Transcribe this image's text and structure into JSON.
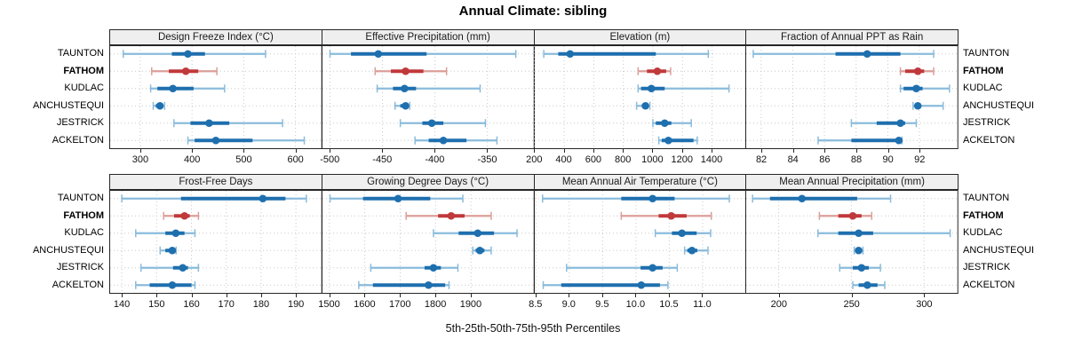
{
  "title": "Annual Climate: sibling",
  "caption": "5th-25th-50th-75th-95th Percentiles",
  "colors": {
    "border": "#262626",
    "grid": "#c9c9c9",
    "header_bg": "#efefef",
    "blue": "#1e6fae",
    "blue_light": "#8abbdb",
    "red": "#c0393b",
    "red_light": "#dc9e98",
    "text": "#111111"
  },
  "chart_data": {
    "type": "dot-interval-trellis",
    "percentiles": [
      5,
      25,
      50,
      75,
      95
    ],
    "categories": [
      "TAUNTON",
      "FATHOM",
      "KUDLAC",
      "ANCHUSTEQUI",
      "JESTRICK",
      "ACKELTON"
    ],
    "highlight_category": "FATHOM",
    "legend_note": "highlighted site shown in red",
    "panels": [
      {
        "title": "Design Freeze Index (°C)",
        "grid_position": [
          0,
          0
        ],
        "xlim": [
          240,
          650
        ],
        "tick_values": [
          300,
          400,
          500,
          600
        ],
        "tick_labels": [
          "300",
          "400",
          "500",
          "600"
        ],
        "series": {
          "TAUNTON": [
            267,
            361,
            392,
            425,
            542
          ],
          "FATHOM": [
            322,
            355,
            388,
            412,
            448
          ],
          "KUDLAC": [
            320,
            333,
            363,
            403,
            463
          ],
          "ANCHUSTEQUI": [
            325,
            330,
            338,
            342,
            347
          ],
          "JESTRICK": [
            365,
            397,
            433,
            472,
            575
          ],
          "ACKELTON": [
            392,
            405,
            446,
            517,
            617
          ]
        }
      },
      {
        "title": "Effective Precipitation (mm)",
        "grid_position": [
          0,
          1
        ],
        "xlim": [
          -508,
          -306
        ],
        "tick_values": [
          -500,
          -450,
          -400,
          -350
        ],
        "tick_labels": [
          "-500",
          "-450",
          "-400",
          "-350"
        ],
        "series": {
          "TAUNTON": [
            -500,
            -480,
            -454,
            -408,
            -323
          ],
          "FATHOM": [
            -457,
            -442,
            -428,
            -411,
            -389
          ],
          "KUDLAC": [
            -455,
            -440,
            -429,
            -418,
            -357
          ],
          "ANCHUSTEQUI": [
            -438,
            -433,
            -428,
            -426,
            -424
          ],
          "JESTRICK": [
            -433,
            -412,
            -403,
            -392,
            -352
          ],
          "ACKELTON": [
            -419,
            -406,
            -392,
            -370,
            -341
          ]
        }
      },
      {
        "title": "Elevation (m)",
        "grid_position": [
          0,
          2
        ],
        "xlim": [
          195,
          1630
        ],
        "tick_values": [
          200,
          400,
          600,
          800,
          1000,
          1200,
          1400
        ],
        "tick_labels": [
          "200",
          "400",
          "600",
          "800",
          "1000",
          "1200",
          "1400"
        ],
        "series": {
          "TAUNTON": [
            262,
            360,
            440,
            1020,
            1375
          ],
          "FATHOM": [
            900,
            960,
            1030,
            1090,
            1120
          ],
          "KUDLAC": [
            900,
            920,
            990,
            1080,
            1515
          ],
          "ANCHUSTEQUI": [
            890,
            925,
            950,
            965,
            980
          ],
          "JESTRICK": [
            1000,
            1020,
            1080,
            1125,
            1260
          ],
          "ACKELTON": [
            1040,
            1060,
            1105,
            1275,
            1300
          ]
        }
      },
      {
        "title": "Fraction of Annual PPT as Rain",
        "grid_position": [
          0,
          3
        ],
        "xlim": [
          81,
          94.4
        ],
        "tick_values": [
          82,
          84,
          86,
          88,
          90,
          92
        ],
        "tick_labels": [
          "82",
          "84",
          "86",
          "88",
          "90",
          "92"
        ],
        "series": {
          "TAUNTON": [
            81.5,
            86.7,
            88.7,
            90.8,
            92.9
          ],
          "FATHOM": [
            90.8,
            91.1,
            91.9,
            92.3,
            92.9
          ],
          "KUDLAC": [
            90.8,
            91.0,
            91.8,
            92.2,
            93.9
          ],
          "ANCHUSTEQUI": [
            91.6,
            91.8,
            91.9,
            92.1,
            93.5
          ],
          "JESTRICK": [
            87.7,
            89.3,
            90.8,
            91.1,
            91.8
          ],
          "ACKELTON": [
            85.6,
            87.7,
            90.7,
            90.8,
            90.9
          ]
        }
      },
      {
        "title": "Frost-Free Days",
        "grid_position": [
          1,
          0
        ],
        "xlim": [
          136.4,
          197.3
        ],
        "tick_values": [
          140,
          150,
          160,
          170,
          180,
          190
        ],
        "tick_labels": [
          "140",
          "150",
          "160",
          "170",
          "180",
          "190"
        ],
        "series": {
          "TAUNTON": [
            140,
            157,
            180.5,
            187,
            193
          ],
          "FATHOM": [
            152,
            155,
            158,
            159.5,
            162
          ],
          "KUDLAC": [
            144,
            152.5,
            155.5,
            158,
            161
          ],
          "ANCHUSTEQUI": [
            151,
            152.5,
            154.5,
            155.2,
            155.6
          ],
          "JESTRICK": [
            145.5,
            154.7,
            157.5,
            159,
            162
          ],
          "ACKELTON": [
            144,
            148,
            154.5,
            160,
            161
          ]
        }
      },
      {
        "title": "Growing Degree Days (°C)",
        "grid_position": [
          1,
          1
        ],
        "xlim": [
          1478,
          2077
        ],
        "tick_values": [
          1500,
          1600,
          1700,
          1800,
          1900
        ],
        "tick_labels": [
          "1500",
          "1600",
          "1700",
          "1800",
          "1900"
        ],
        "series": {
          "TAUNTON": [
            1502,
            1595,
            1694,
            1785,
            1877
          ],
          "FATHOM": [
            1717,
            1807,
            1844,
            1882,
            1957
          ],
          "KUDLAC": [
            1794,
            1865,
            1919,
            1965,
            2030
          ],
          "ANCHUSTEQUI": [
            1905,
            1913,
            1925,
            1938,
            1957
          ],
          "JESTRICK": [
            1617,
            1769,
            1794,
            1815,
            1863
          ],
          "ACKELTON": [
            1583,
            1623,
            1780,
            1827,
            1838
          ]
        }
      },
      {
        "title": "Mean Annual Air Temperature (°C)",
        "grid_position": [
          1,
          2
        ],
        "xlim": [
          8.47,
          11.65
        ],
        "tick_values": [
          8.5,
          9.0,
          9.5,
          10.0,
          10.5,
          11.0
        ],
        "tick_labels": [
          "8.5",
          "9.0",
          "9.5",
          "10.0",
          "10.5",
          "11.0"
        ],
        "series": {
          "TAUNTON": [
            8.6,
            9.78,
            10.25,
            10.58,
            11.4
          ],
          "FATHOM": [
            9.78,
            10.34,
            10.53,
            10.76,
            11.13
          ],
          "KUDLAC": [
            10.29,
            10.54,
            10.69,
            10.91,
            11.12
          ],
          "ANCHUSTEQUI": [
            10.73,
            10.77,
            10.84,
            10.92,
            11.08
          ],
          "JESTRICK": [
            8.96,
            10.07,
            10.25,
            10.4,
            10.62
          ],
          "ACKELTON": [
            8.61,
            8.88,
            10.08,
            10.36,
            10.48
          ]
        }
      },
      {
        "title": "Mean Annual Precipitation (mm)",
        "grid_position": [
          1,
          3
        ],
        "xlim": [
          177,
          323
        ],
        "tick_values": [
          200,
          250,
          300
        ],
        "tick_labels": [
          "200",
          "250",
          "300"
        ],
        "series": {
          "TAUNTON": [
            182,
            194,
            216,
            254,
            277
          ],
          "FATHOM": [
            228,
            241,
            251,
            257,
            264
          ],
          "KUDLAC": [
            227,
            241,
            255,
            265,
            318
          ],
          "ANCHUSTEQUI": [
            252,
            253.5,
            255,
            256.5,
            258
          ],
          "JESTRICK": [
            242,
            251,
            257,
            262,
            270
          ],
          "ACKELTON": [
            251,
            255,
            261,
            268,
            273
          ]
        }
      }
    ]
  }
}
